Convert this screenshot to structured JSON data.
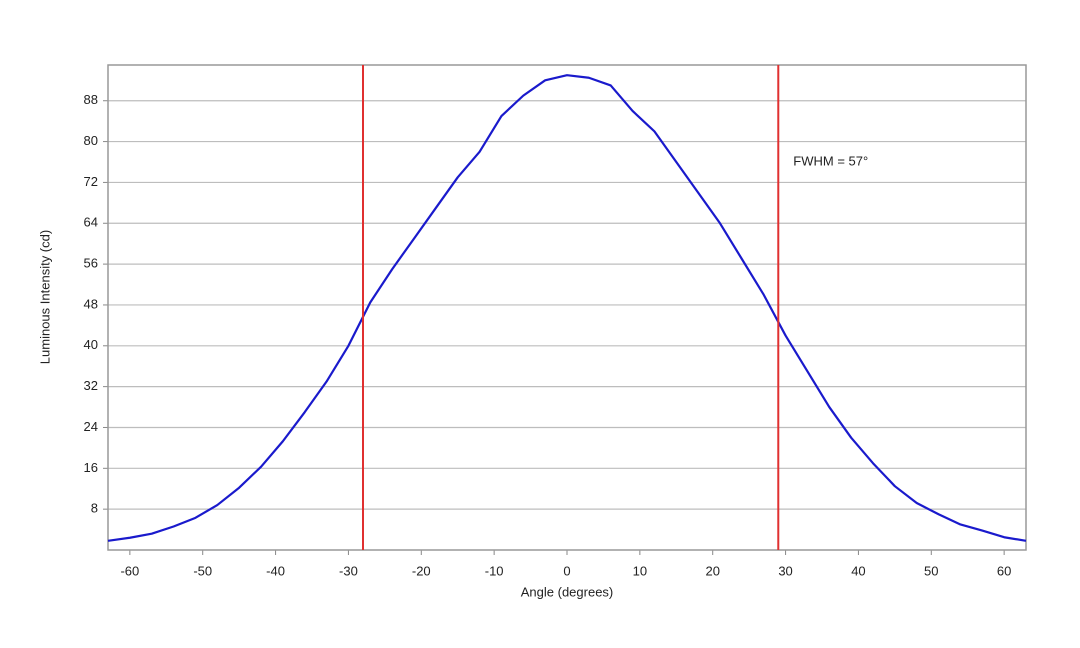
{
  "chart_data": {
    "type": "line",
    "x_label": "Angle (degrees)",
    "y_label": "Luminous Intensity (cd)",
    "annotation": "FWHM = 57°",
    "x": [
      -63,
      -60,
      -57,
      -54,
      -51,
      -48,
      -45,
      -42,
      -39,
      -36,
      -33,
      -30,
      -27,
      -24,
      -21,
      -18,
      -15,
      -12,
      -9,
      -6,
      -3,
      0,
      3,
      6,
      9,
      12,
      15,
      18,
      21,
      24,
      27,
      30,
      33,
      36,
      39,
      42,
      45,
      48,
      51,
      54,
      57,
      60,
      63
    ],
    "series": [
      {
        "name": "Luminous Intensity",
        "color": "#1a1acc",
        "values": [
          1.8,
          2.4,
          3.2,
          4.6,
          6.3,
          8.8,
          12.2,
          16.3,
          21.3,
          27,
          33,
          40,
          48.5,
          55,
          61,
          67,
          73,
          78,
          85,
          89,
          92,
          93,
          92.5,
          91,
          86,
          82,
          76,
          70,
          64,
          57,
          50,
          42,
          35,
          28,
          22,
          17,
          12.5,
          9.2,
          7,
          5,
          3.8,
          2.5,
          1.8
        ]
      }
    ],
    "vlines": [
      -28,
      29
    ],
    "vline_color": "#e03030",
    "xlim": [
      -63,
      63
    ],
    "ylim": [
      0,
      95
    ],
    "xticks": [
      -60,
      -50,
      -40,
      -30,
      -20,
      -10,
      0,
      10,
      20,
      30,
      40,
      50,
      60
    ],
    "yticks": [
      8,
      16,
      24,
      32,
      40,
      48,
      56,
      64,
      72,
      80,
      88
    ],
    "grid": true
  }
}
